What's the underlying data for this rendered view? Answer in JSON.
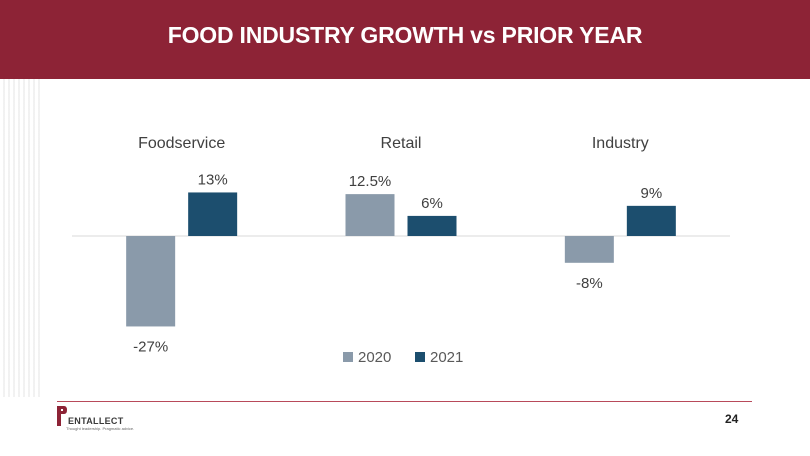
{
  "slide": {
    "title": "FOOD INDUSTRY GROWTH vs PRIOR YEAR",
    "page_number": "24"
  },
  "logo": {
    "name": "ENTALLECT",
    "tagline": "Thought leadership. Pragmatic advice.",
    "brand_color": "#8d2336"
  },
  "chart_data": {
    "type": "bar",
    "categories": [
      "Foodservice",
      "Retail",
      "Industry"
    ],
    "series": [
      {
        "name": "2020",
        "values": [
          -27,
          12.5,
          -8
        ],
        "labels": [
          "-27%",
          "12.5%",
          "-8%"
        ],
        "color": "#8a9aaa"
      },
      {
        "name": "2021",
        "values": [
          13,
          6,
          9
        ],
        "labels": [
          "13%",
          "6%",
          "9%"
        ],
        "color": "#1c4e6e"
      }
    ],
    "ylim": [
      -27,
      13
    ],
    "grid": false,
    "legend_position": "bottom"
  }
}
